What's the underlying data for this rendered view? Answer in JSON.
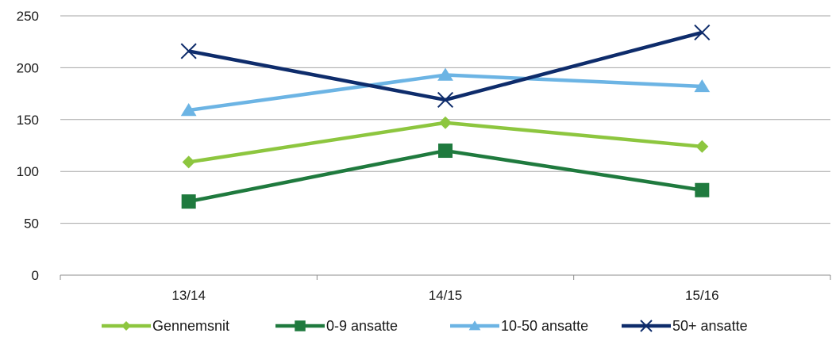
{
  "chart_data": {
    "type": "line",
    "categories": [
      "13/14",
      "14/15",
      "15/16"
    ],
    "ylim": [
      0,
      250
    ],
    "yticks": [
      0,
      50,
      100,
      150,
      200,
      250
    ],
    "grid": true,
    "legend_position": "bottom",
    "series": [
      {
        "name": "Gennemsnit",
        "values": [
          109,
          147,
          124
        ],
        "color": "#8dc63f",
        "marker": "diamond"
      },
      {
        "name": "0-9 ansatte",
        "values": [
          71,
          120,
          82
        ],
        "color": "#1f7a3e",
        "marker": "square"
      },
      {
        "name": "10-50 ansatte",
        "values": [
          159,
          193,
          182
        ],
        "color": "#6cb4e4",
        "marker": "triangle"
      },
      {
        "name": "50+ ansatte",
        "values": [
          216,
          169,
          234
        ],
        "color": "#0e2c6b",
        "marker": "x"
      }
    ]
  }
}
